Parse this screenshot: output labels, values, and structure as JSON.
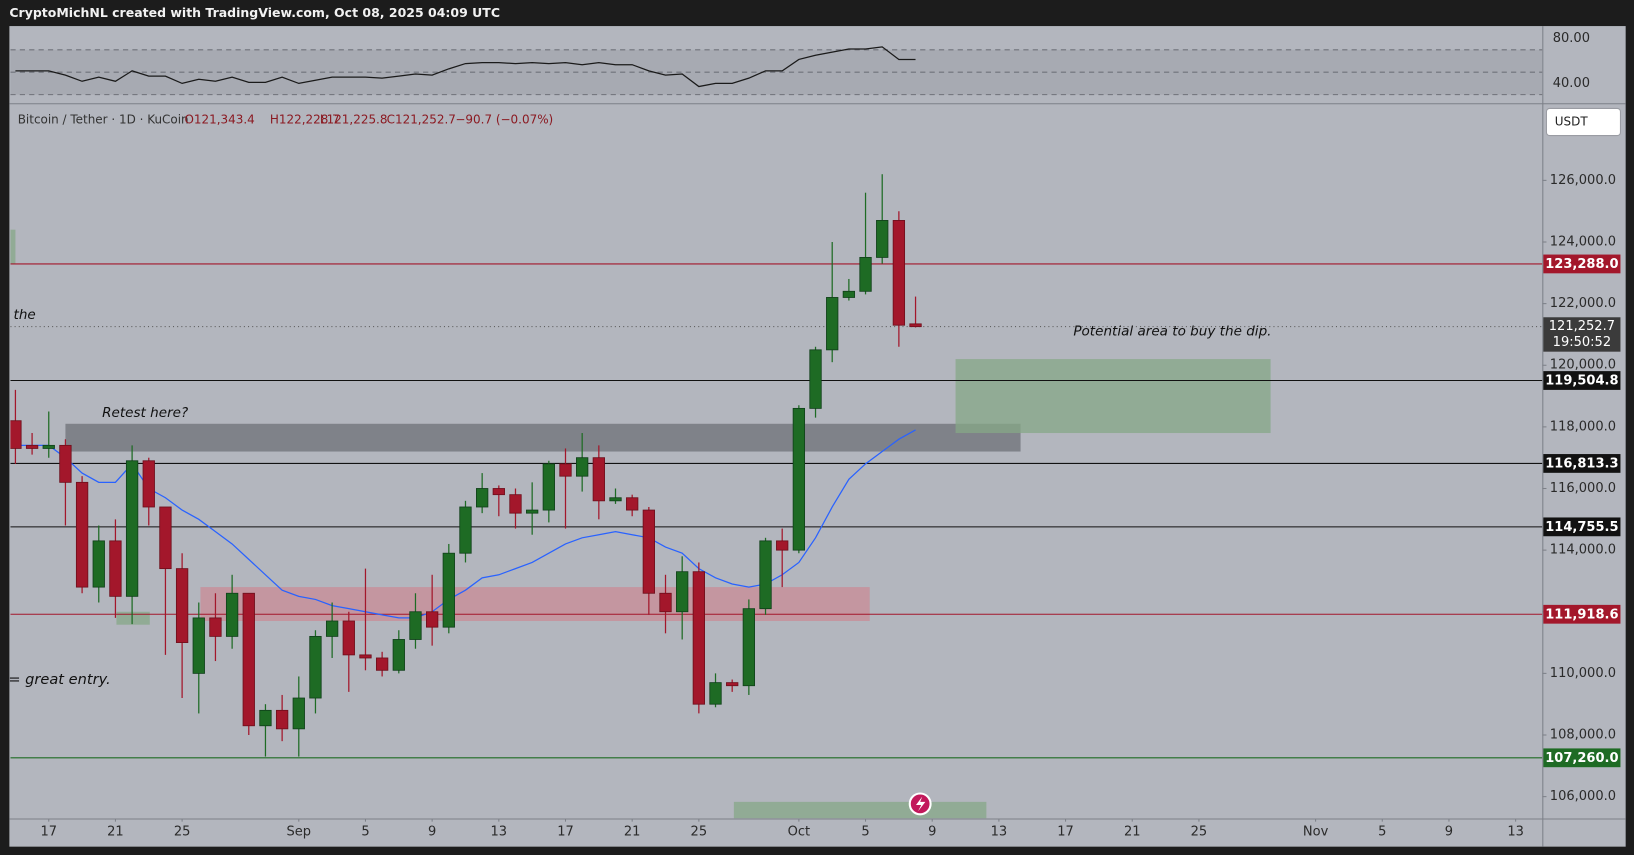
{
  "chart_data": {
    "type": "candlestick",
    "header": "CryptoMichNL created with TradingView.com, Oct 08, 2025 04:09 UTC",
    "legend": {
      "symbol": "Bitcoin / Tether · 1D · KuCoin",
      "ohlc": [
        "O121,343.4",
        "H122,228.7",
        "L121,225.8",
        "C121,252.7"
      ],
      "change": "−90.7 (−0.07%)"
    },
    "currency_button": "USDT",
    "annotations": [
      "Retest here?",
      "Potential area to buy the dip.",
      "the",
      "= great entry."
    ],
    "up_color": "#1e6b24",
    "down_color": "#a3172b",
    "open": [
      118200,
      117400,
      117300,
      117400,
      116200,
      112800,
      114300,
      112500,
      116900,
      115400,
      113400,
      110000,
      111800,
      111200,
      112600,
      108300,
      108800,
      108200,
      109200,
      111200,
      111700,
      110600,
      110500,
      110100,
      111100,
      112000,
      111500,
      113900,
      115400,
      116000,
      115800,
      115200,
      115300,
      116800,
      116400,
      117000,
      115600,
      115700,
      115300,
      112600,
      112000,
      113300,
      109000,
      109700,
      109600,
      112100,
      114300,
      114000,
      118600,
      120500,
      122200,
      122400,
      123500,
      124700,
      121343.4
    ],
    "high": [
      119200,
      117800,
      118500,
      117600,
      116400,
      114800,
      115000,
      117400,
      117000,
      115400,
      113900,
      112300,
      112600,
      113200,
      112600,
      109000,
      109300,
      109900,
      111400,
      112300,
      112000,
      113400,
      110700,
      111400,
      112600,
      113200,
      114200,
      115600,
      116500,
      116100,
      116000,
      116200,
      116900,
      117300,
      117800,
      117400,
      116000,
      115800,
      115400,
      113200,
      113800,
      113600,
      110000,
      109800,
      112400,
      114400,
      114700,
      118700,
      120600,
      124000,
      122800,
      125600,
      126200,
      125000,
      122228.7
    ],
    "low": [
      116800,
      117100,
      117000,
      114800,
      112600,
      112300,
      111800,
      111600,
      114800,
      110600,
      109200,
      108700,
      110400,
      110800,
      108000,
      107300,
      107800,
      107300,
      108700,
      110500,
      109400,
      110100,
      109900,
      110000,
      110800,
      110900,
      111300,
      113600,
      115200,
      115100,
      114700,
      114500,
      114900,
      114700,
      115900,
      115000,
      115500,
      115100,
      111900,
      111300,
      111100,
      108700,
      108900,
      109400,
      109300,
      111900,
      112800,
      113900,
      118300,
      120100,
      122100,
      122300,
      123300,
      120600,
      121225.8
    ],
    "close": [
      117300,
      117300,
      117400,
      116200,
      112800,
      114300,
      112500,
      116900,
      115400,
      113400,
      111000,
      111800,
      111200,
      112600,
      108300,
      108800,
      108200,
      109200,
      111200,
      111700,
      110600,
      110500,
      110100,
      111100,
      112000,
      111500,
      113900,
      115400,
      116000,
      115800,
      115200,
      115300,
      116800,
      116400,
      117000,
      115600,
      115700,
      115300,
      112600,
      112000,
      113300,
      109000,
      109700,
      109600,
      112100,
      114300,
      114000,
      118600,
      120500,
      122200,
      122400,
      123500,
      124700,
      121300,
      121252.7
    ],
    "moving_average": {
      "color": "#2962ff",
      "values": [
        117400,
        117400,
        117400,
        117000,
        116500,
        116200,
        116200,
        116800,
        116000,
        115700,
        115300,
        115000,
        114600,
        114200,
        113700,
        113200,
        112700,
        112500,
        112400,
        112200,
        112100,
        112000,
        111900,
        111800,
        111800,
        112000,
        112400,
        112700,
        113100,
        113200,
        113400,
        113600,
        113900,
        114200,
        114400,
        114500,
        114600,
        114500,
        114400,
        114100,
        113900,
        113400,
        113100,
        112900,
        112800,
        112900,
        113200,
        113600,
        114400,
        115400,
        116300,
        116800,
        117200,
        117600,
        117900
      ]
    },
    "xlim": [
      -0.3,
      91.6
    ],
    "xticks": [
      {
        "value": 2,
        "label": "17"
      },
      {
        "value": 6,
        "label": "21"
      },
      {
        "value": 10,
        "label": "25"
      },
      {
        "value": 17,
        "label": "Sep"
      },
      {
        "value": 21,
        "label": "5"
      },
      {
        "value": 25,
        "label": "9"
      },
      {
        "value": 29,
        "label": "13"
      },
      {
        "value": 33,
        "label": "17"
      },
      {
        "value": 37,
        "label": "21"
      },
      {
        "value": 41,
        "label": "25"
      },
      {
        "value": 47,
        "label": "Oct"
      },
      {
        "value": 51,
        "label": "5"
      },
      {
        "value": 55,
        "label": "9"
      },
      {
        "value": 59,
        "label": "13"
      },
      {
        "value": 63,
        "label": "17"
      },
      {
        "value": 67,
        "label": "21"
      },
      {
        "value": 71,
        "label": "25"
      },
      {
        "value": 78,
        "label": "Nov"
      },
      {
        "value": 82,
        "label": "5"
      },
      {
        "value": 86,
        "label": "9"
      },
      {
        "value": 90,
        "label": "13"
      }
    ],
    "ylim": [
      105290,
      128470
    ],
    "yticks": [
      {
        "value": 106000,
        "label": "106,000.0"
      },
      {
        "value": 108000,
        "label": "108,000.0"
      },
      {
        "value": 110000,
        "label": "110,000.0"
      },
      {
        "value": 112000,
        "label": "112,000.0"
      },
      {
        "value": 114000,
        "label": "114,000.0"
      },
      {
        "value": 116000,
        "label": "116,000.0"
      },
      {
        "value": 118000,
        "label": "118,000.0"
      },
      {
        "value": 120000,
        "label": "120,000.0"
      },
      {
        "value": 122000,
        "label": "122,000.0"
      },
      {
        "value": 124000,
        "label": "124,000.0"
      },
      {
        "value": 126000,
        "label": "126,000.0"
      }
    ],
    "levels": [
      {
        "value": 123288,
        "label": "123,288.0",
        "color": "#a3172b"
      },
      {
        "value": 119504.8,
        "label": "119,504.8",
        "color": "#111111"
      },
      {
        "value": 116813.3,
        "label": "116,813.3",
        "color": "#111111"
      },
      {
        "value": 114755.5,
        "label": "114,755.5",
        "color": "#111111"
      },
      {
        "value": 111918.6,
        "label": "111,918.6",
        "color": "#a3172b"
      },
      {
        "value": 107260,
        "label": "107,260.0",
        "color": "#1e6b24"
      }
    ],
    "current_price": {
      "value": 121252.7,
      "label": "121,252.7",
      "countdown": "19:50:52",
      "color": "#3b3b3b"
    },
    "zones": [
      {
        "x": [
          3,
          60.3
        ],
        "y": [
          117200,
          118100
        ],
        "color": "#6e7077"
      },
      {
        "x": [
          11.1,
          51.25
        ],
        "y": [
          111700,
          112800
        ],
        "color": "#c98b96"
      },
      {
        "x": [
          56.4,
          75.3
        ],
        "y": [
          117800,
          120200
        ],
        "color": "#86a787"
      },
      {
        "x": [
          6.06,
          8.06
        ],
        "y": [
          111580,
          112000
        ],
        "color": "#86a787"
      },
      {
        "x": [
          43.1,
          58.25
        ],
        "y": [
          105300,
          105830
        ],
        "color": "#86a787"
      },
      {
        "x": [
          -0.3,
          0
        ],
        "y": [
          123300,
          124400
        ],
        "color": "#86a787"
      }
    ],
    "rsi": {
      "color": "#1a1a1a",
      "ylim": [
        22.3,
        91.2
      ],
      "yticks": [
        {
          "value": 80,
          "label": "80.00"
        },
        {
          "value": 40,
          "label": "40.00"
        }
      ],
      "levels": [
        70,
        50,
        30
      ],
      "values": [
        51.2,
        51.2,
        51.2,
        47.4,
        41.9,
        45.6,
        41.9,
        51.2,
        46.5,
        46.5,
        40.0,
        43.7,
        41.9,
        45.6,
        40.9,
        40.9,
        45.6,
        40.0,
        42.8,
        45.6,
        45.6,
        45.6,
        44.7,
        46.5,
        48.4,
        47.4,
        53.0,
        57.7,
        58.6,
        58.6,
        57.7,
        58.6,
        57.7,
        58.6,
        56.7,
        58.6,
        56.7,
        56.7,
        51.2,
        47.4,
        48.4,
        37.2,
        40.0,
        40.0,
        44.7,
        51.2,
        51.2,
        61.4,
        65.1,
        67.9,
        70.7,
        70.7,
        72.6,
        61.4,
        61.4
      ]
    }
  }
}
